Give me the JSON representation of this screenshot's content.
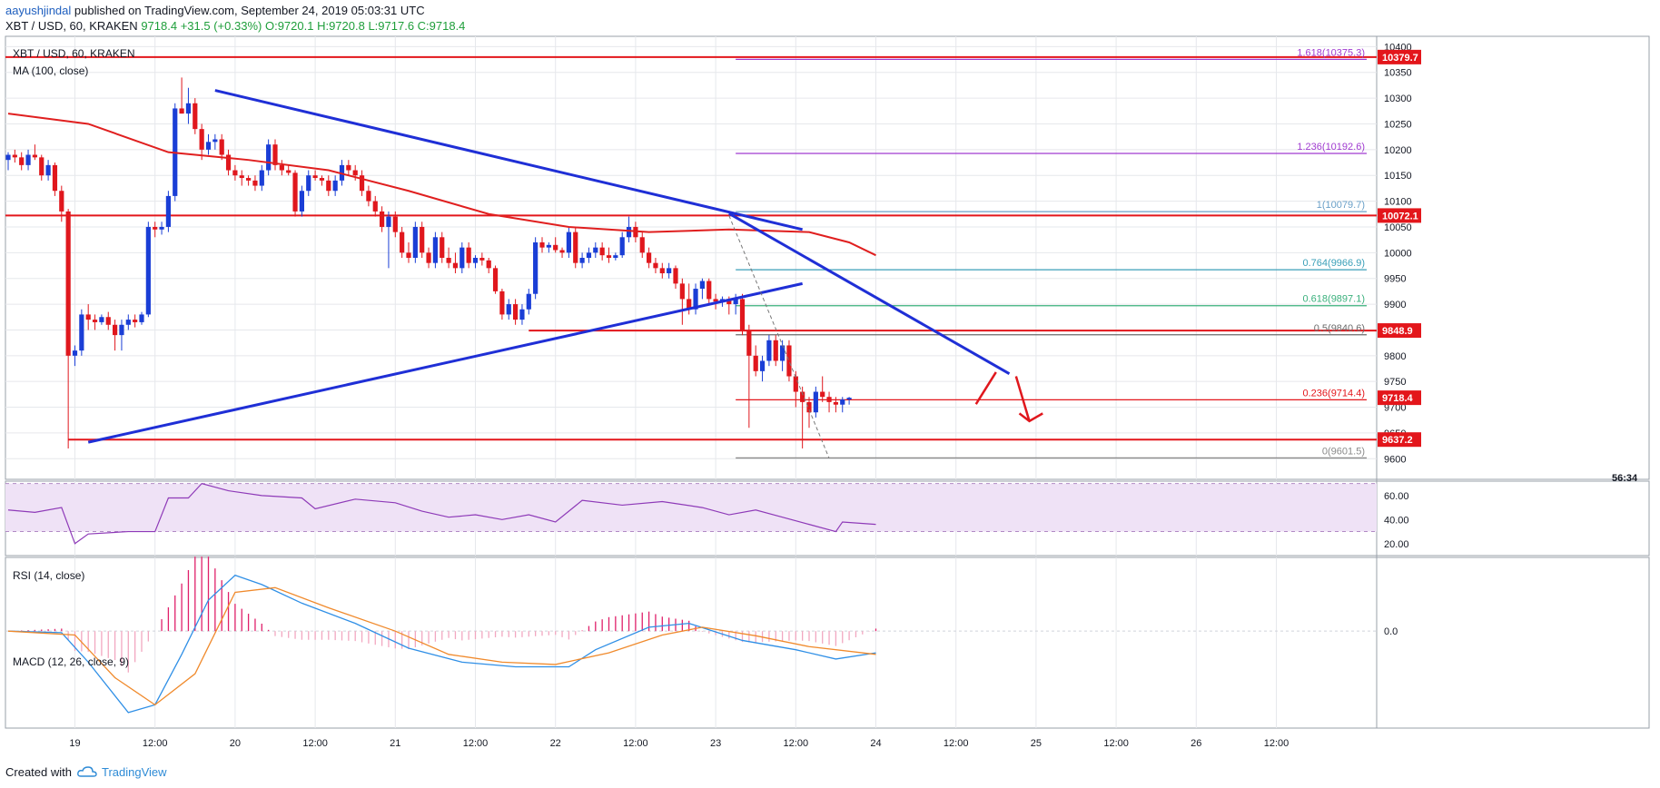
{
  "header": {
    "author": "aayushjindal",
    "published": "published on TradingView.com, September 24, 2019 05:03:31 UTC",
    "symbol_line": "XBT / USD, 60, KRAKEN",
    "ohlc": "O:9720.1 H:9720.8 L:9717.6 C:9718.4",
    "last_price": "9718.4",
    "change": "+31.5 (+0.33%)"
  },
  "footer": {
    "prefix": "Created with",
    "brand": "TradingView"
  },
  "colors": {
    "up": "#1a3ed6",
    "down": "#e0171d",
    "ma": "#e01f1f",
    "trend": "#1f2fd6",
    "hline": "#e3161b",
    "rsi": "#8e3ab8",
    "macd": "#2f8fe6",
    "signal": "#f08a2c",
    "hist_pos": "#e0206a",
    "fib_top": "#a03ad0"
  },
  "chart_data": [
    {
      "type": "candlestick",
      "symbol_label": "XBT / USD, 60, KRAKEN",
      "indicator_label": "MA (100, close)",
      "ylim": [
        9560,
        10420
      ],
      "y_ticks": [
        9600,
        9650,
        9700,
        9750,
        9800,
        9850,
        9900,
        9950,
        10000,
        10050,
        10100,
        10150,
        10200,
        10250,
        10300,
        10350,
        10400
      ],
      "x_ticks": [
        "19",
        "12:00",
        "20",
        "12:00",
        "21",
        "12:00",
        "22",
        "12:00",
        "23",
        "12:00",
        "24",
        "12:00",
        "25",
        "12:00",
        "26",
        "12:00"
      ],
      "price_tags": [
        {
          "value": 10379.7,
          "label": "10379.7"
        },
        {
          "value": 10072.1,
          "label": "10072.1"
        },
        {
          "value": 9848.9,
          "label": "9848.9"
        },
        {
          "value": 9718.4,
          "label": "9718.4"
        },
        {
          "value": 9637.2,
          "label": "9637.2"
        }
      ],
      "countdown": "56:34",
      "horizontal_lines": [
        {
          "value": 10379.7,
          "from": "start"
        },
        {
          "value": 10072.1,
          "from": "start"
        },
        {
          "value": 9848.9,
          "from": "Sep 21 18:00"
        },
        {
          "value": 9637.2,
          "from": "Sep 18 23:00"
        }
      ],
      "fibonacci": [
        {
          "ratio": 1.618,
          "price": 10375.3,
          "label": "1.618(10375.3)"
        },
        {
          "ratio": 1.236,
          "price": 10192.6,
          "label": "1.236(10192.6)"
        },
        {
          "ratio": 1,
          "price": 10079.7,
          "label": "1(10079.7)"
        },
        {
          "ratio": 0.764,
          "price": 9966.9,
          "label": "0.764(9966.9)"
        },
        {
          "ratio": 0.618,
          "price": 9897.1,
          "label": "0.618(9897.1)"
        },
        {
          "ratio": 0.5,
          "price": 9840.6,
          "label": "0.5(9840.6)"
        },
        {
          "ratio": 0.236,
          "price": 9714.4,
          "label": "0.236(9714.4)"
        },
        {
          "ratio": 0,
          "price": 9601.5,
          "label": "0(9601.5)"
        }
      ],
      "candles": [
        [
          10180,
          10195,
          10160,
          10190
        ],
        [
          10190,
          10200,
          10175,
          10185
        ],
        [
          10185,
          10195,
          10160,
          10170
        ],
        [
          10170,
          10200,
          10160,
          10190
        ],
        [
          10190,
          10210,
          10180,
          10185
        ],
        [
          10185,
          10190,
          10140,
          10150
        ],
        [
          10150,
          10180,
          10140,
          10170
        ],
        [
          10170,
          10175,
          10110,
          10120
        ],
        [
          10120,
          10130,
          10060,
          10080
        ],
        [
          10080,
          10085,
          9620,
          9800
        ],
        [
          9800,
          9820,
          9780,
          9810
        ],
        [
          9810,
          9890,
          9800,
          9880
        ],
        [
          9880,
          9900,
          9850,
          9870
        ],
        [
          9870,
          9880,
          9850,
          9865
        ],
        [
          9865,
          9880,
          9860,
          9875
        ],
        [
          9875,
          9885,
          9850,
          9860
        ],
        [
          9860,
          9870,
          9810,
          9840
        ],
        [
          9840,
          9870,
          9810,
          9860
        ],
        [
          9860,
          9880,
          9850,
          9870
        ],
        [
          9870,
          9880,
          9855,
          9865
        ],
        [
          9865,
          9885,
          9860,
          9880
        ],
        [
          9880,
          10060,
          9875,
          10050
        ],
        [
          10050,
          10060,
          10030,
          10045
        ],
        [
          10045,
          10060,
          10035,
          10050
        ],
        [
          10050,
          10120,
          10040,
          10110
        ],
        [
          10110,
          10290,
          10100,
          10280
        ],
        [
          10280,
          10340,
          10270,
          10270
        ],
        [
          10270,
          10320,
          10250,
          10290
        ],
        [
          10290,
          10300,
          10230,
          10240
        ],
        [
          10240,
          10250,
          10180,
          10200
        ],
        [
          10200,
          10230,
          10190,
          10215
        ],
        [
          10215,
          10230,
          10200,
          10220
        ],
        [
          10220,
          10230,
          10180,
          10190
        ],
        [
          10190,
          10200,
          10150,
          10160
        ],
        [
          10160,
          10170,
          10140,
          10150
        ],
        [
          10150,
          10160,
          10130,
          10145
        ],
        [
          10145,
          10150,
          10130,
          10140
        ],
        [
          10140,
          10150,
          10120,
          10130
        ],
        [
          10130,
          10170,
          10120,
          10160
        ],
        [
          10160,
          10220,
          10150,
          10210
        ],
        [
          10210,
          10220,
          10160,
          10170
        ],
        [
          10170,
          10180,
          10150,
          10160
        ],
        [
          10160,
          10170,
          10150,
          10155
        ],
        [
          10155,
          10160,
          10070,
          10080
        ],
        [
          10080,
          10130,
          10070,
          10120
        ],
        [
          10120,
          10160,
          10110,
          10150
        ],
        [
          10150,
          10160,
          10140,
          10145
        ],
        [
          10145,
          10150,
          10130,
          10140
        ],
        [
          10140,
          10150,
          10110,
          10120
        ],
        [
          10120,
          10150,
          10110,
          10140
        ],
        [
          10140,
          10180,
          10130,
          10170
        ],
        [
          10170,
          10180,
          10150,
          10160
        ],
        [
          10160,
          10170,
          10140,
          10150
        ],
        [
          10150,
          10160,
          10110,
          10120
        ],
        [
          10120,
          10130,
          10090,
          10100
        ],
        [
          10100,
          10110,
          10070,
          10080
        ],
        [
          10080,
          10090,
          10040,
          10050
        ],
        [
          10050,
          10080,
          9970,
          10070
        ],
        [
          10070,
          10080,
          10030,
          10040
        ],
        [
          10040,
          10050,
          9990,
          10000
        ],
        [
          10000,
          10020,
          9980,
          9990
        ],
        [
          9990,
          10060,
          9980,
          10050
        ],
        [
          10050,
          10060,
          9990,
          10000
        ],
        [
          10000,
          10010,
          9970,
          9980
        ],
        [
          9980,
          10040,
          9970,
          10030
        ],
        [
          10030,
          10040,
          9980,
          9990
        ],
        [
          9990,
          10010,
          9970,
          9980
        ],
        [
          9980,
          10000,
          9960,
          9970
        ],
        [
          9970,
          10020,
          9960,
          10010
        ],
        [
          10010,
          10020,
          9970,
          9980
        ],
        [
          9980,
          9995,
          9970,
          9990
        ],
        [
          9990,
          10000,
          9975,
          9985
        ],
        [
          9985,
          9990,
          9960,
          9970
        ],
        [
          9970,
          9975,
          9920,
          9925
        ],
        [
          9925,
          9930,
          9870,
          9880
        ],
        [
          9880,
          9910,
          9870,
          9900
        ],
        [
          9900,
          9910,
          9860,
          9870
        ],
        [
          9870,
          9900,
          9860,
          9890
        ],
        [
          9890,
          9930,
          9880,
          9920
        ],
        [
          9920,
          10030,
          9910,
          10020
        ],
        [
          10020,
          10030,
          10000,
          10010
        ],
        [
          10010,
          10020,
          10000,
          10015
        ],
        [
          10015,
          10030,
          10000,
          10005
        ],
        [
          10005,
          10010,
          9990,
          10000
        ],
        [
          10000,
          10050,
          9990,
          10040
        ],
        [
          10040,
          10050,
          9970,
          9980
        ],
        [
          9980,
          10000,
          9970,
          9990
        ],
        [
          9990,
          10010,
          9980,
          10000
        ],
        [
          10000,
          10020,
          9990,
          10010
        ],
        [
          10010,
          10020,
          9985,
          9995
        ],
        [
          9995,
          10010,
          9980,
          9990
        ],
        [
          9990,
          10000,
          9985,
          9995
        ],
        [
          9995,
          10040,
          9990,
          10030
        ],
        [
          10030,
          10070,
          10020,
          10050
        ],
        [
          10050,
          10060,
          10020,
          10030
        ],
        [
          10030,
          10040,
          9990,
          10000
        ],
        [
          10000,
          10010,
          9970,
          9980
        ],
        [
          9980,
          9990,
          9960,
          9970
        ],
        [
          9970,
          9980,
          9950,
          9960
        ],
        [
          9960,
          9980,
          9950,
          9970
        ],
        [
          9970,
          9975,
          9930,
          9940
        ],
        [
          9940,
          9950,
          9860,
          9910
        ],
        [
          9910,
          9940,
          9880,
          9890
        ],
        [
          9890,
          9940,
          9880,
          9930
        ],
        [
          9930,
          9950,
          9910,
          9945
        ],
        [
          9945,
          9950,
          9900,
          9910
        ],
        [
          9910,
          9920,
          9890,
          9905
        ],
        [
          9905,
          9915,
          9895,
          9910
        ],
        [
          9910,
          9915,
          9880,
          9900
        ],
        [
          9900,
          9920,
          9880,
          9910
        ],
        [
          9910,
          9920,
          9840,
          9850
        ],
        [
          9850,
          9860,
          9660,
          9800
        ],
        [
          9800,
          9820,
          9760,
          9770
        ],
        [
          9770,
          9800,
          9750,
          9790
        ],
        [
          9790,
          9840,
          9780,
          9830
        ],
        [
          9830,
          9840,
          9780,
          9790
        ],
        [
          9790,
          9830,
          9770,
          9820
        ],
        [
          9820,
          9830,
          9750,
          9760
        ],
        [
          9760,
          9770,
          9700,
          9730
        ],
        [
          9730,
          9740,
          9620,
          9710
        ],
        [
          9710,
          9720,
          9660,
          9690
        ],
        [
          9690,
          9740,
          9680,
          9730
        ],
        [
          9730,
          9760,
          9710,
          9720
        ],
        [
          9720,
          9730,
          9690,
          9710
        ],
        [
          9710,
          9720,
          9690,
          9705
        ],
        [
          9705,
          9720,
          9690,
          9715
        ],
        [
          9715,
          9720,
          9705,
          9718.4
        ]
      ],
      "ma": [
        [
          0,
          10270
        ],
        [
          12,
          10250
        ],
        [
          24,
          10195
        ],
        [
          36,
          10180
        ],
        [
          48,
          10160
        ],
        [
          60,
          10120
        ],
        [
          72,
          10075
        ],
        [
          84,
          10050
        ],
        [
          96,
          10040
        ],
        [
          108,
          10045
        ],
        [
          120,
          10040
        ],
        [
          126,
          10020
        ],
        [
          130,
          9995
        ]
      ]
    },
    {
      "type": "line",
      "indicator_label": "RSI (14, close)",
      "ylim": [
        10,
        72
      ],
      "y_ticks": [
        20,
        40,
        60
      ],
      "band": [
        30,
        70
      ],
      "values": [
        [
          0,
          48
        ],
        [
          4,
          46
        ],
        [
          8,
          50
        ],
        [
          10,
          20
        ],
        [
          12,
          28
        ],
        [
          18,
          30
        ],
        [
          22,
          30
        ],
        [
          24,
          58
        ],
        [
          27,
          58
        ],
        [
          29,
          70
        ],
        [
          33,
          64
        ],
        [
          38,
          60
        ],
        [
          44,
          58
        ],
        [
          46,
          49
        ],
        [
          52,
          57
        ],
        [
          58,
          54
        ],
        [
          62,
          47
        ],
        [
          66,
          42
        ],
        [
          70,
          44
        ],
        [
          74,
          40
        ],
        [
          78,
          44
        ],
        [
          82,
          38
        ],
        [
          86,
          56
        ],
        [
          92,
          52
        ],
        [
          98,
          55
        ],
        [
          104,
          50
        ],
        [
          108,
          44
        ],
        [
          112,
          48
        ],
        [
          116,
          42
        ],
        [
          120,
          36
        ],
        [
          124,
          30
        ],
        [
          125,
          38
        ],
        [
          130,
          36
        ]
      ]
    },
    {
      "type": "line",
      "indicator_label": "MACD (12, 26, close, 9)",
      "ylim": [
        -125,
        95
      ],
      "y_ticks": [
        0
      ],
      "macd": [
        [
          0,
          0
        ],
        [
          8,
          -2
        ],
        [
          12,
          -40
        ],
        [
          18,
          -105
        ],
        [
          22,
          -95
        ],
        [
          26,
          -30
        ],
        [
          30,
          40
        ],
        [
          34,
          72
        ],
        [
          38,
          60
        ],
        [
          44,
          36
        ],
        [
          52,
          10
        ],
        [
          60,
          -22
        ],
        [
          68,
          -40
        ],
        [
          76,
          -46
        ],
        [
          84,
          -46
        ],
        [
          88,
          -24
        ],
        [
          96,
          5
        ],
        [
          102,
          10
        ],
        [
          110,
          -12
        ],
        [
          118,
          -24
        ],
        [
          124,
          -36
        ],
        [
          130,
          -28
        ]
      ],
      "signal": [
        [
          0,
          0
        ],
        [
          10,
          -5
        ],
        [
          16,
          -60
        ],
        [
          22,
          -95
        ],
        [
          28,
          -55
        ],
        [
          34,
          50
        ],
        [
          40,
          56
        ],
        [
          48,
          30
        ],
        [
          58,
          0
        ],
        [
          66,
          -30
        ],
        [
          74,
          -40
        ],
        [
          82,
          -43
        ],
        [
          90,
          -28
        ],
        [
          98,
          -5
        ],
        [
          104,
          5
        ],
        [
          112,
          -6
        ],
        [
          120,
          -20
        ],
        [
          130,
          -30
        ]
      ]
    }
  ]
}
